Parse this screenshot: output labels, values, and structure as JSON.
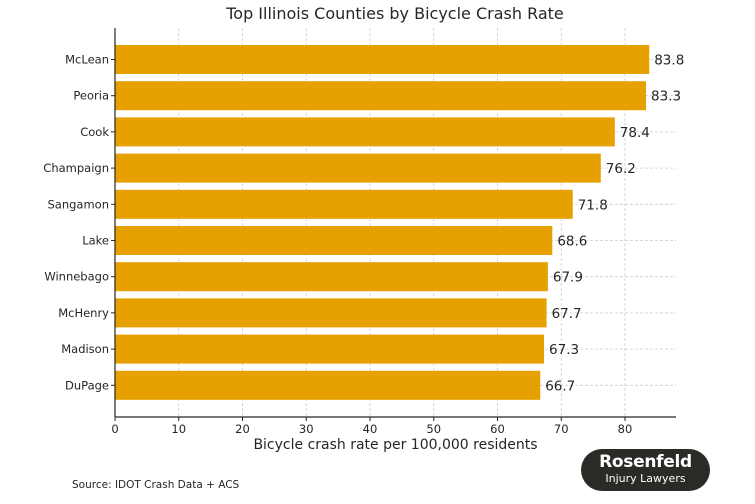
{
  "chart_data": {
    "type": "bar",
    "orientation": "horizontal",
    "title": "Top Illinois Counties by Bicycle Crash Rate",
    "xlabel": "Bicycle crash rate per 100,000 residents",
    "ylabel": "",
    "categories": [
      "McLean",
      "Peoria",
      "Cook",
      "Champaign",
      "Sangamon",
      "Lake",
      "Winnebago",
      "McHenry",
      "Madison",
      "DuPage"
    ],
    "values": [
      83.8,
      83.3,
      78.4,
      76.2,
      71.8,
      68.6,
      67.9,
      67.7,
      67.3,
      66.7
    ],
    "value_labels": [
      "83.8",
      "83.3",
      "78.4",
      "76.2",
      "71.8",
      "68.6",
      "67.9",
      "67.7",
      "67.3",
      "66.7"
    ],
    "xlim": [
      0,
      88
    ],
    "xticks": [
      "0",
      "10",
      "20",
      "30",
      "40",
      "50",
      "60",
      "70",
      "80"
    ],
    "grid": true,
    "bar_color": "#e6a000"
  },
  "source": "Source: IDOT Crash Data + ACS",
  "logo": {
    "line1": "Rosenfeld",
    "line2": "Injury Lawyers"
  }
}
